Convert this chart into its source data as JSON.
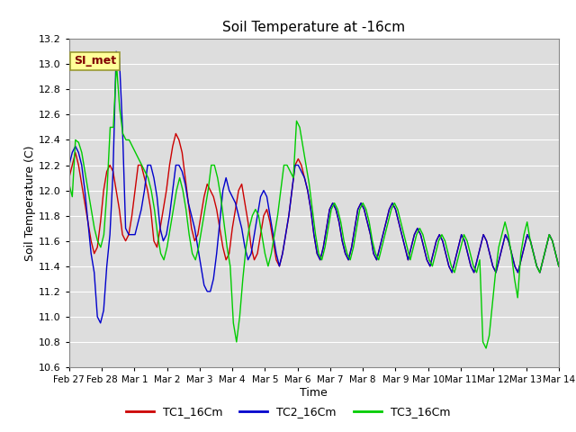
{
  "title": "Soil Temperature at -16cm",
  "xlabel": "Time",
  "ylabel": "Soil Temperature (C)",
  "ylim": [
    10.6,
    13.2
  ],
  "yticks": [
    10.6,
    10.8,
    11.0,
    11.2,
    11.4,
    11.6,
    11.8,
    12.0,
    12.2,
    12.4,
    12.6,
    12.8,
    13.0,
    13.2
  ],
  "bg_color": "#dddddd",
  "grid_color": "white",
  "line_colors": {
    "TC1_16Cm": "#cc0000",
    "TC2_16Cm": "#0000cc",
    "TC3_16Cm": "#00cc00"
  },
  "legend_label": "SI_met",
  "legend_bg": "#ffff99",
  "legend_text_color": "#800000",
  "total_days": 15,
  "xtick_labels": [
    "Feb 27",
    "Feb 28",
    "Mar 1",
    "Mar 2",
    "Mar 3",
    "Mar 4",
    "Mar 5",
    "Mar 6",
    "Mar 7",
    "Mar 8",
    "Mar 9",
    "Mar 10",
    "Mar 11",
    "Mar 12",
    "Mar 13",
    "Mar 14"
  ],
  "tc1": [
    12.1,
    12.2,
    12.3,
    12.2,
    12.05,
    11.9,
    11.75,
    11.6,
    11.5,
    11.55,
    11.75,
    12.0,
    12.15,
    12.2,
    12.15,
    12.0,
    11.85,
    11.65,
    11.6,
    11.65,
    11.8,
    12.0,
    12.2,
    12.2,
    12.1,
    12.0,
    11.85,
    11.6,
    11.55,
    11.7,
    11.85,
    12.0,
    12.2,
    12.35,
    12.45,
    12.4,
    12.3,
    12.1,
    11.9,
    11.7,
    11.6,
    11.65,
    11.8,
    11.95,
    12.05,
    12.0,
    11.95,
    11.85,
    11.7,
    11.55,
    11.45,
    11.5,
    11.7,
    11.85,
    12.0,
    12.05,
    11.9,
    11.75,
    11.55,
    11.45,
    11.5,
    11.65,
    11.8,
    11.85,
    11.75,
    11.6,
    11.45,
    11.4,
    11.5,
    11.65,
    11.8,
    12.0,
    12.2,
    12.25,
    12.2,
    12.1,
    12.0,
    11.85,
    11.65,
    11.5,
    11.45,
    11.55,
    11.7,
    11.85,
    11.9,
    11.85,
    11.75,
    11.6,
    11.5,
    11.45,
    11.55,
    11.7,
    11.85,
    11.9,
    11.85,
    11.75,
    11.65,
    11.5,
    11.45,
    11.55,
    11.65,
    11.75,
    11.85,
    11.9,
    11.85,
    11.75,
    11.65,
    11.55,
    11.45,
    11.55,
    11.65,
    11.7,
    11.65,
    11.55,
    11.45,
    11.4,
    11.5,
    11.6,
    11.65,
    11.6,
    11.5,
    11.4,
    11.35,
    11.45,
    11.55,
    11.65,
    11.6,
    11.5,
    11.4,
    11.35,
    11.45,
    11.55,
    11.65,
    11.6,
    11.5,
    11.4,
    11.35,
    11.45,
    11.55,
    11.65,
    11.6,
    11.5,
    11.4,
    11.35,
    11.45,
    11.55,
    11.65,
    11.6,
    11.5,
    11.4,
    11.35,
    11.45,
    11.55,
    11.65,
    11.6,
    11.5,
    11.4
  ],
  "tc2": [
    12.2,
    12.3,
    12.35,
    12.3,
    12.2,
    12.0,
    11.75,
    11.5,
    11.35,
    11.0,
    10.95,
    11.05,
    11.4,
    11.65,
    12.15,
    13.1,
    13.05,
    12.5,
    11.7,
    11.65,
    11.65,
    11.65,
    11.75,
    11.85,
    12.0,
    12.2,
    12.2,
    12.1,
    11.95,
    11.7,
    11.6,
    11.65,
    11.8,
    12.0,
    12.2,
    12.2,
    12.15,
    12.05,
    11.9,
    11.8,
    11.7,
    11.55,
    11.4,
    11.25,
    11.2,
    11.2,
    11.3,
    11.5,
    11.75,
    12.0,
    12.1,
    12.0,
    11.95,
    11.9,
    11.8,
    11.7,
    11.55,
    11.45,
    11.5,
    11.65,
    11.8,
    11.95,
    12.0,
    11.95,
    11.8,
    11.65,
    11.5,
    11.4,
    11.5,
    11.65,
    11.8,
    12.0,
    12.2,
    12.2,
    12.15,
    12.1,
    12.0,
    11.85,
    11.65,
    11.5,
    11.45,
    11.55,
    11.7,
    11.85,
    11.9,
    11.85,
    11.75,
    11.6,
    11.5,
    11.45,
    11.55,
    11.7,
    11.85,
    11.9,
    11.85,
    11.75,
    11.65,
    11.5,
    11.45,
    11.55,
    11.65,
    11.75,
    11.85,
    11.9,
    11.85,
    11.75,
    11.65,
    11.55,
    11.45,
    11.55,
    11.65,
    11.7,
    11.65,
    11.55,
    11.45,
    11.4,
    11.5,
    11.6,
    11.65,
    11.6,
    11.5,
    11.4,
    11.35,
    11.45,
    11.55,
    11.65,
    11.6,
    11.5,
    11.4,
    11.35,
    11.45,
    11.55,
    11.65,
    11.6,
    11.5,
    11.4,
    11.35,
    11.45,
    11.55,
    11.65,
    11.6,
    11.5,
    11.4,
    11.35,
    11.45,
    11.55,
    11.65,
    11.6,
    11.5,
    11.4,
    11.35,
    11.45,
    11.55,
    11.65,
    11.6,
    11.5,
    11.4
  ],
  "tc3": [
    12.05,
    11.95,
    12.4,
    12.38,
    12.3,
    12.15,
    12.0,
    11.85,
    11.7,
    11.6,
    11.55,
    11.65,
    12.0,
    12.5,
    12.5,
    13.0,
    12.65,
    12.45,
    12.4,
    12.4,
    12.35,
    12.3,
    12.25,
    12.2,
    12.15,
    12.1,
    12.0,
    11.85,
    11.65,
    11.5,
    11.45,
    11.55,
    11.7,
    11.85,
    12.0,
    12.1,
    12.0,
    11.85,
    11.65,
    11.5,
    11.45,
    11.55,
    11.7,
    11.85,
    12.0,
    12.2,
    12.2,
    12.1,
    11.95,
    11.75,
    11.55,
    11.4,
    10.95,
    10.8,
    11.0,
    11.3,
    11.55,
    11.7,
    11.8,
    11.85,
    11.8,
    11.65,
    11.5,
    11.4,
    11.5,
    11.65,
    11.8,
    12.0,
    12.2,
    12.2,
    12.15,
    12.1,
    12.55,
    12.5,
    12.35,
    12.2,
    12.05,
    11.85,
    11.65,
    11.5,
    11.45,
    11.55,
    11.7,
    11.85,
    11.9,
    11.85,
    11.75,
    11.6,
    11.5,
    11.45,
    11.55,
    11.7,
    11.85,
    11.9,
    11.85,
    11.75,
    11.6,
    11.5,
    11.45,
    11.55,
    11.65,
    11.75,
    11.85,
    11.9,
    11.85,
    11.75,
    11.65,
    11.55,
    11.45,
    11.55,
    11.65,
    11.7,
    11.65,
    11.55,
    11.45,
    11.4,
    11.5,
    11.6,
    11.65,
    11.6,
    11.5,
    11.4,
    11.35,
    11.45,
    11.55,
    11.65,
    11.6,
    11.5,
    11.4,
    11.35,
    11.45,
    10.8,
    10.75,
    10.85,
    11.1,
    11.35,
    11.55,
    11.65,
    11.75,
    11.65,
    11.5,
    11.3,
    11.15,
    11.5,
    11.65,
    11.75,
    11.6,
    11.5,
    11.4,
    11.35,
    11.45,
    11.55,
    11.65,
    11.6,
    11.5,
    11.4
  ]
}
